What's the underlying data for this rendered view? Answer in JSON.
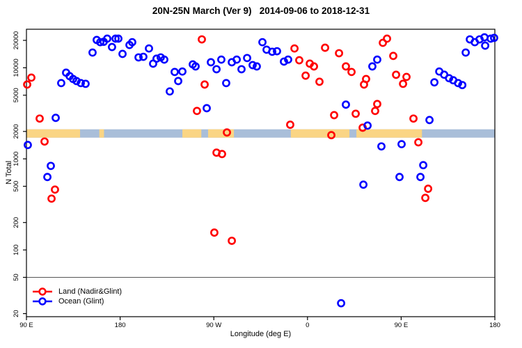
{
  "title": "20N-25N March (Ver 9)   2014-09-06 to 2018-12-31",
  "axes": {
    "x": {
      "label": "Longitude (deg E)",
      "range_deg": [
        90,
        540
      ],
      "ticks": [
        {
          "deg": 90,
          "label": "90 E"
        },
        {
          "deg": 180,
          "label": "180"
        },
        {
          "deg": 270,
          "label": "90 W"
        },
        {
          "deg": 360,
          "label": "0"
        },
        {
          "deg": 450,
          "label": "90 E"
        },
        {
          "deg": 540,
          "label": "180"
        }
      ]
    },
    "y": {
      "label": "N Total",
      "scale": "log",
      "range": [
        18.5,
        26500
      ],
      "ticks": [
        {
          "value": 20000,
          "label": "20000"
        },
        {
          "value": 10000,
          "label": "10000"
        },
        {
          "value": 5000,
          "label": "5000"
        },
        {
          "value": 2000,
          "label": "2000"
        },
        {
          "value": 1000,
          "label": "1000"
        },
        {
          "value": 500,
          "label": "500"
        },
        {
          "value": 200,
          "label": "200"
        },
        {
          "value": 100,
          "label": "100"
        },
        {
          "value": 50,
          "label": "50"
        },
        {
          "value": 20,
          "label": "20"
        }
      ]
    }
  },
  "reference_line": {
    "y_value": 50,
    "color": "#555555"
  },
  "land_ocean_band": {
    "center_n": 1900,
    "land_color": "#FAD584",
    "ocean_color": "#A9BED9",
    "land_segments_deg": [
      [
        90,
        141.5
      ],
      [
        160,
        164.5
      ],
      [
        239.8,
        258
      ],
      [
        264.5,
        289.3
      ],
      [
        344,
        400.3
      ],
      [
        407,
        470
      ]
    ]
  },
  "legend": {
    "items": [
      {
        "label": "Land (Nadir&Glint)",
        "color": "#FF0000"
      },
      {
        "label": "Ocean (Glint)",
        "color": "#0000FF"
      }
    ]
  },
  "chart_data": {
    "type": "scatter",
    "title": "20N-25N March (Ver 9)   2014-09-06 to 2018-12-31",
    "xlabel": "Longitude (deg E)",
    "ylabel": "N Total",
    "x_axis_note": "axis runs 90E eastward across the dateline to 180 (plotted 90..540)",
    "ylog": true,
    "series": [
      {
        "name": "Land (Nadir&Glint)",
        "color": "#FF0000",
        "points": [
          [
            94.7,
            7800
          ],
          [
            90.7,
            6550
          ],
          [
            102.7,
            2770
          ],
          [
            107.4,
            1550
          ],
          [
            117.4,
            460
          ],
          [
            114.1,
            366
          ],
          [
            258.5,
            20500
          ],
          [
            261.2,
            6550
          ],
          [
            253.8,
            3360
          ],
          [
            272.6,
            1170
          ],
          [
            277.9,
            1130
          ],
          [
            282.6,
            1950
          ],
          [
            270.5,
            155
          ],
          [
            287.3,
            126
          ],
          [
            343.4,
            2370
          ],
          [
            347.5,
            16300
          ],
          [
            352.1,
            12100
          ],
          [
            358.2,
            8200
          ],
          [
            362.2,
            11100
          ],
          [
            366.2,
            10350
          ],
          [
            371.5,
            7030
          ],
          [
            376.9,
            16600
          ],
          [
            385.6,
            3020
          ],
          [
            390.3,
            14450
          ],
          [
            382.9,
            1820
          ],
          [
            396.9,
            10350
          ],
          [
            402.3,
            9000
          ],
          [
            406.3,
            3130
          ],
          [
            413.0,
            2200
          ],
          [
            416.3,
            7530
          ],
          [
            414.3,
            6550
          ],
          [
            425.0,
            3360
          ],
          [
            427.0,
            4000
          ],
          [
            432.4,
            18800
          ],
          [
            436.4,
            20900
          ],
          [
            442.4,
            13500
          ],
          [
            445.1,
            8380
          ],
          [
            455.1,
            7940
          ],
          [
            451.8,
            6670
          ],
          [
            461.8,
            2770
          ],
          [
            466.5,
            1520
          ],
          [
            475.9,
            470
          ],
          [
            473.2,
            373
          ]
        ]
      },
      {
        "name": "Ocean (Glint)",
        "color": "#0000FF",
        "points": [
          [
            91.3,
            1420
          ],
          [
            118.1,
            2820
          ],
          [
            123.4,
            6790
          ],
          [
            128.1,
            8830
          ],
          [
            131.5,
            8090
          ],
          [
            134.8,
            7530
          ],
          [
            138.1,
            7150
          ],
          [
            142.2,
            6790
          ],
          [
            146.8,
            6670
          ],
          [
            113.4,
            837
          ],
          [
            110.1,
            632
          ],
          [
            153.5,
            14700
          ],
          [
            157.5,
            20200
          ],
          [
            160.9,
            19100
          ],
          [
            164.2,
            19300
          ],
          [
            167.6,
            20900
          ],
          [
            172.2,
            16900
          ],
          [
            175.6,
            20900
          ],
          [
            178.3,
            20900
          ],
          [
            182.3,
            14200
          ],
          [
            189.0,
            17800
          ],
          [
            191.6,
            19100
          ],
          [
            197.7,
            13000
          ],
          [
            202.3,
            13200
          ],
          [
            207.7,
            16300
          ],
          [
            211.7,
            11100
          ],
          [
            215.0,
            12600
          ],
          [
            219.0,
            13000
          ],
          [
            222.4,
            12300
          ],
          [
            232.4,
            9000
          ],
          [
            235.8,
            7150
          ],
          [
            227.7,
            5500
          ],
          [
            239.8,
            9100
          ],
          [
            249.8,
            10900
          ],
          [
            252.5,
            10350
          ],
          [
            263.2,
            3600
          ],
          [
            267.2,
            11500
          ],
          [
            272.6,
            9640
          ],
          [
            277.2,
            12300
          ],
          [
            281.9,
            6790
          ],
          [
            287.3,
            11500
          ],
          [
            292.0,
            12300
          ],
          [
            296.6,
            9640
          ],
          [
            302.0,
            12800
          ],
          [
            307.3,
            10700
          ],
          [
            311.3,
            10350
          ],
          [
            316.7,
            19100
          ],
          [
            320.7,
            15800
          ],
          [
            326.1,
            15000
          ],
          [
            330.7,
            15200
          ],
          [
            337.4,
            11700
          ],
          [
            341.4,
            12300
          ],
          [
            396.9,
            3940
          ],
          [
            413.7,
            521
          ],
          [
            417.7,
            2320
          ],
          [
            422.3,
            10350
          ],
          [
            427.0,
            12300
          ],
          [
            431.0,
            1370
          ],
          [
            450.4,
            1450
          ],
          [
            448.4,
            632
          ],
          [
            468.5,
            632
          ],
          [
            471.2,
            853
          ],
          [
            477.2,
            2670
          ],
          [
            481.9,
            6920
          ],
          [
            486.6,
            9100
          ],
          [
            491.3,
            8400
          ],
          [
            496.0,
            7680
          ],
          [
            500.0,
            7300
          ],
          [
            504.7,
            6790
          ],
          [
            508.7,
            6460
          ],
          [
            512.0,
            14700
          ],
          [
            516.0,
            20500
          ],
          [
            520.7,
            19100
          ],
          [
            525.3,
            20500
          ],
          [
            530.0,
            21600
          ],
          [
            536.0,
            20900
          ],
          [
            539.3,
            21300
          ],
          [
            530.7,
            17500
          ],
          [
            392.3,
            26
          ]
        ]
      }
    ]
  }
}
